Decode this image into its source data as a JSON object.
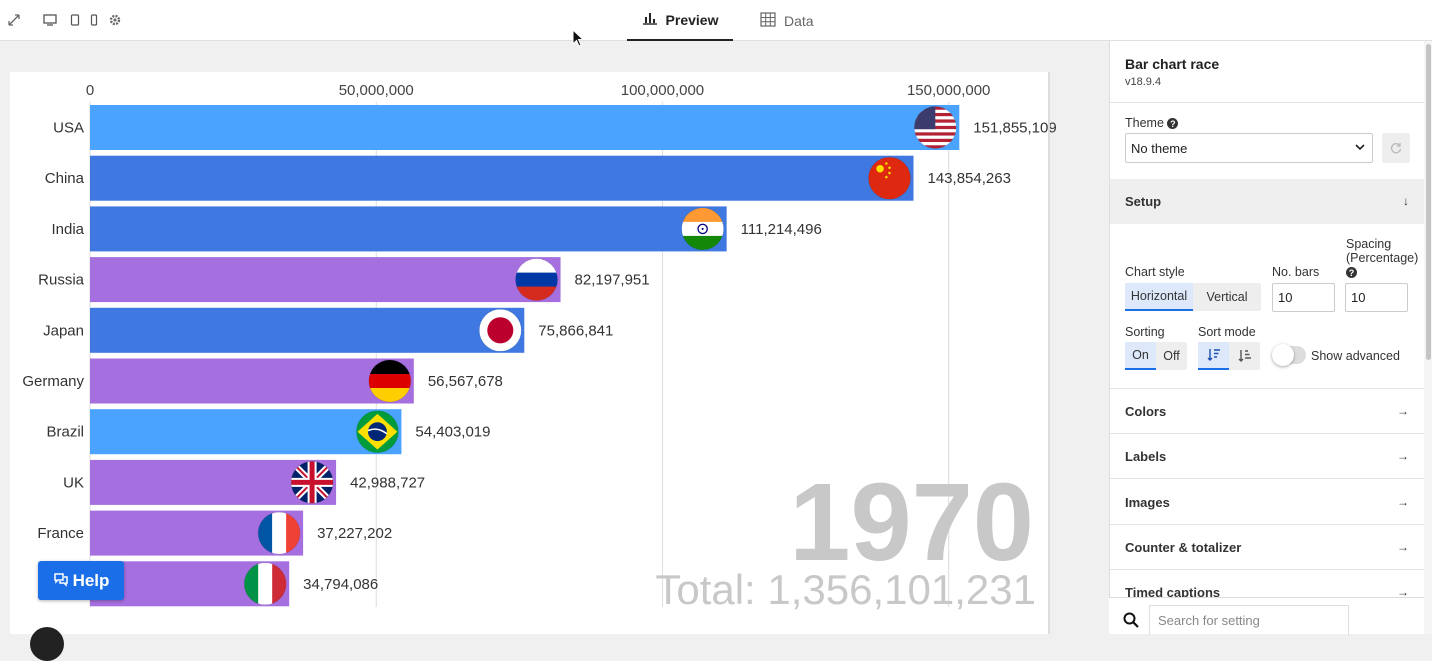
{
  "tabs": [
    {
      "label": "Preview",
      "icon": "bar-chart-icon",
      "active": true
    },
    {
      "label": "Data",
      "icon": "table-icon",
      "active": false
    }
  ],
  "chart_data": {
    "type": "bar",
    "orientation": "horizontal",
    "categories": [
      "USA",
      "China",
      "India",
      "Russia",
      "Japan",
      "Germany",
      "Brazil",
      "UK",
      "France",
      "Italy"
    ],
    "visible_category_labels": [
      "USA",
      "China",
      "India",
      "Russia",
      "Japan",
      "Germany",
      "Brazil",
      "UK",
      "France",
      ""
    ],
    "values": [
      151855109,
      143854263,
      111214496,
      82197951,
      75866841,
      56567678,
      54403019,
      42988727,
      37227202,
      34794086
    ],
    "value_labels": [
      "151,855,109",
      "143,854,263",
      "111,214,496",
      "82,197,951",
      "75,866,841",
      "56,567,678",
      "54,403,019",
      "42,988,727",
      "37,227,202",
      "34,794,086"
    ],
    "bar_colors": [
      "#4aa3ff",
      "#3f78e0",
      "#3f78e0",
      "#a66fdf",
      "#3f78e0",
      "#a66fdf",
      "#4aa3ff",
      "#a66fdf",
      "#a66fdf",
      "#a66fdf"
    ],
    "flags": [
      "usa-flag-icon",
      "china-flag-icon",
      "india-flag-icon",
      "russia-flag-icon",
      "japan-flag-icon",
      "germany-flag-icon",
      "brazil-flag-icon",
      "uk-flag-icon",
      "france-flag-icon",
      "italy-flag-icon"
    ],
    "x_ticks": [
      0,
      50000000,
      100000000,
      150000000
    ],
    "x_tick_labels": [
      "0",
      "50,000,000",
      "100,000,000",
      "150,000,000"
    ],
    "xlim": [
      0,
      167000000
    ],
    "axis_position": "top",
    "grid": true,
    "year": "1970",
    "total": "Total: 1,356,101,231"
  },
  "help_button": {
    "label": "Help"
  },
  "panel": {
    "title": "Bar chart race",
    "version": "v18.9.4",
    "theme": {
      "label": "Theme",
      "value": "No theme"
    },
    "setup": {
      "title": "Setup",
      "chart_style_label": "Chart style",
      "chart_style_options": [
        "Horizontal",
        "Vertical"
      ],
      "chart_style_selected": "Horizontal",
      "no_bars_label": "No. bars",
      "no_bars_value": "10",
      "spacing_label_1": "Spacing",
      "spacing_label_2": "(Percentage)",
      "spacing_value": "10",
      "sorting_label": "Sorting",
      "sorting_options": [
        "On",
        "Off"
      ],
      "sorting_selected": "On",
      "sort_mode_label": "Sort mode",
      "show_advanced_label": "Show advanced"
    },
    "sections": [
      "Colors",
      "Labels",
      "Images",
      "Counter & totalizer",
      "Timed captions"
    ],
    "search_placeholder": "Search for setting"
  },
  "colors": {
    "accent": "#1a6ee8"
  }
}
